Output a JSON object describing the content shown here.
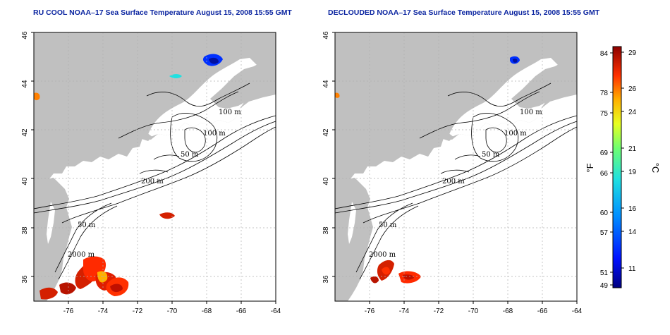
{
  "panels": [
    {
      "title": "RU COOL NOAA–17 Sea Surface Temperature August 15, 2008 15:55 GMT",
      "contour_labels": [
        "100 m",
        "100 m",
        "50 m",
        "200 m",
        "50 m",
        "2000 m"
      ]
    },
    {
      "title": "DECLOUDED NOAA–17 Sea Surface Temperature August 15, 2008 15:55 GMT",
      "contour_labels": [
        "100 m",
        "100 m",
        "50 m",
        "200 m",
        "50 m",
        "2000 m"
      ]
    }
  ],
  "axes": {
    "lon_ticks": [
      "-76",
      "-74",
      "-72",
      "-70",
      "-68",
      "-66",
      "-64"
    ],
    "lat_ticks": [
      "36",
      "38",
      "40",
      "42",
      "44",
      "46"
    ]
  },
  "colorbar": {
    "fahrenheit_ticks": [
      "84",
      "78",
      "75",
      "69",
      "66",
      "60",
      "57",
      "51",
      "49"
    ],
    "celsius_ticks": [
      "29",
      "26",
      "24",
      "21",
      "19",
      "16",
      "14",
      "11"
    ],
    "fahrenheit_unit": "°F",
    "celsius_unit": "°C"
  }
}
